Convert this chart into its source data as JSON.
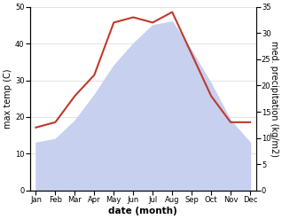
{
  "months": [
    "Jan",
    "Feb",
    "Mar",
    "Apr",
    "May",
    "Jun",
    "Jul",
    "Aug",
    "Sep",
    "Oct",
    "Nov",
    "Dec"
  ],
  "temp": [
    13,
    14,
    19,
    26,
    34,
    40,
    45,
    46,
    38,
    29,
    19,
    13
  ],
  "precip": [
    12,
    13,
    18,
    22,
    32,
    33,
    32,
    34,
    26,
    18,
    13,
    13
  ],
  "temp_fill_color": "#c8d0f0",
  "temp_fill_alpha": 1.0,
  "precip_color": "#c0392b",
  "precip_linewidth": 1.5,
  "temp_ylim": [
    0,
    50
  ],
  "precip_ylim": [
    0,
    35
  ],
  "temp_yticks": [
    0,
    10,
    20,
    30,
    40,
    50
  ],
  "precip_yticks": [
    0,
    5,
    10,
    15,
    20,
    25,
    30,
    35
  ],
  "ylabel_left": "max temp (C)",
  "ylabel_right": "med. precipitation (kg/m2)",
  "xlabel": "date (month)",
  "bg_color": "#ffffff",
  "grid_color": "#d8d8d8",
  "tick_fontsize": 6.0,
  "label_fontsize": 7.0,
  "xlabel_fontsize": 7.5
}
